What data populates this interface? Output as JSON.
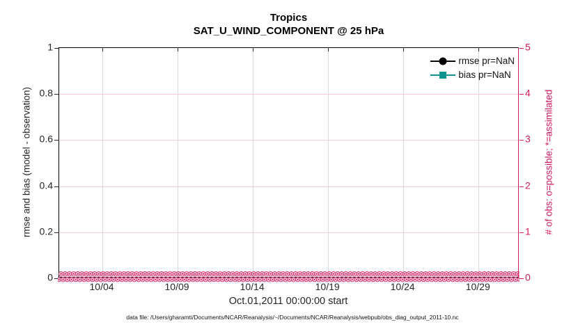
{
  "chart_data": {
    "type": "line",
    "title": "Tropics",
    "subtitle": "SAT_U_WIND_COMPONENT @ 25 hPa",
    "x_axis": {
      "label": "Oct.01,2011 00:00:00 start",
      "tick_labels": [
        "10/04",
        "10/09",
        "10/14",
        "10/19",
        "10/24",
        "10/29"
      ],
      "tick_days": [
        4,
        9,
        14,
        19,
        24,
        29
      ],
      "range_days": [
        1.13,
        31.72
      ],
      "grid": true
    },
    "y_left": {
      "label": "rmse and bias (model - observation)",
      "tick_labels": [
        "0",
        "0.2",
        "0.4",
        "0.6",
        "0.8",
        "1"
      ],
      "tick_values": [
        0,
        0.2,
        0.4,
        0.6,
        0.8,
        1
      ],
      "range": [
        0,
        1
      ],
      "color": "#262626"
    },
    "y_right": {
      "label": "# of obs: o=possible; *=assimilated",
      "tick_labels": [
        "0",
        "1",
        "2",
        "3",
        "4",
        "5"
      ],
      "tick_values": [
        0,
        1,
        2,
        3,
        4,
        5
      ],
      "range": [
        0,
        5
      ],
      "color": "#d3175e"
    },
    "series": [
      {
        "name": "rmse pr=NaN",
        "color": "#000000",
        "marker": "circle",
        "values": "NaN"
      },
      {
        "name": "bias pr=NaN",
        "color": "#0f9292",
        "marker": "square",
        "values": "NaN"
      }
    ],
    "obs_counts": {
      "possible_glyph": "o",
      "assimilated_glyph": "*",
      "value_all_times": 0,
      "color": "#d3175e"
    },
    "legend_position": "top-right-inside",
    "grid_colors": {
      "vertical": "#dcdcdc",
      "horizontal": "#f6c9d8"
    }
  },
  "footer": {
    "data_file": "data file: /Users/gharamti/Documents/NCAR/Reanalysis/~/Documents/NCAR/Reanalysis/webpub/obs_diag_output_2011-10.nc"
  }
}
